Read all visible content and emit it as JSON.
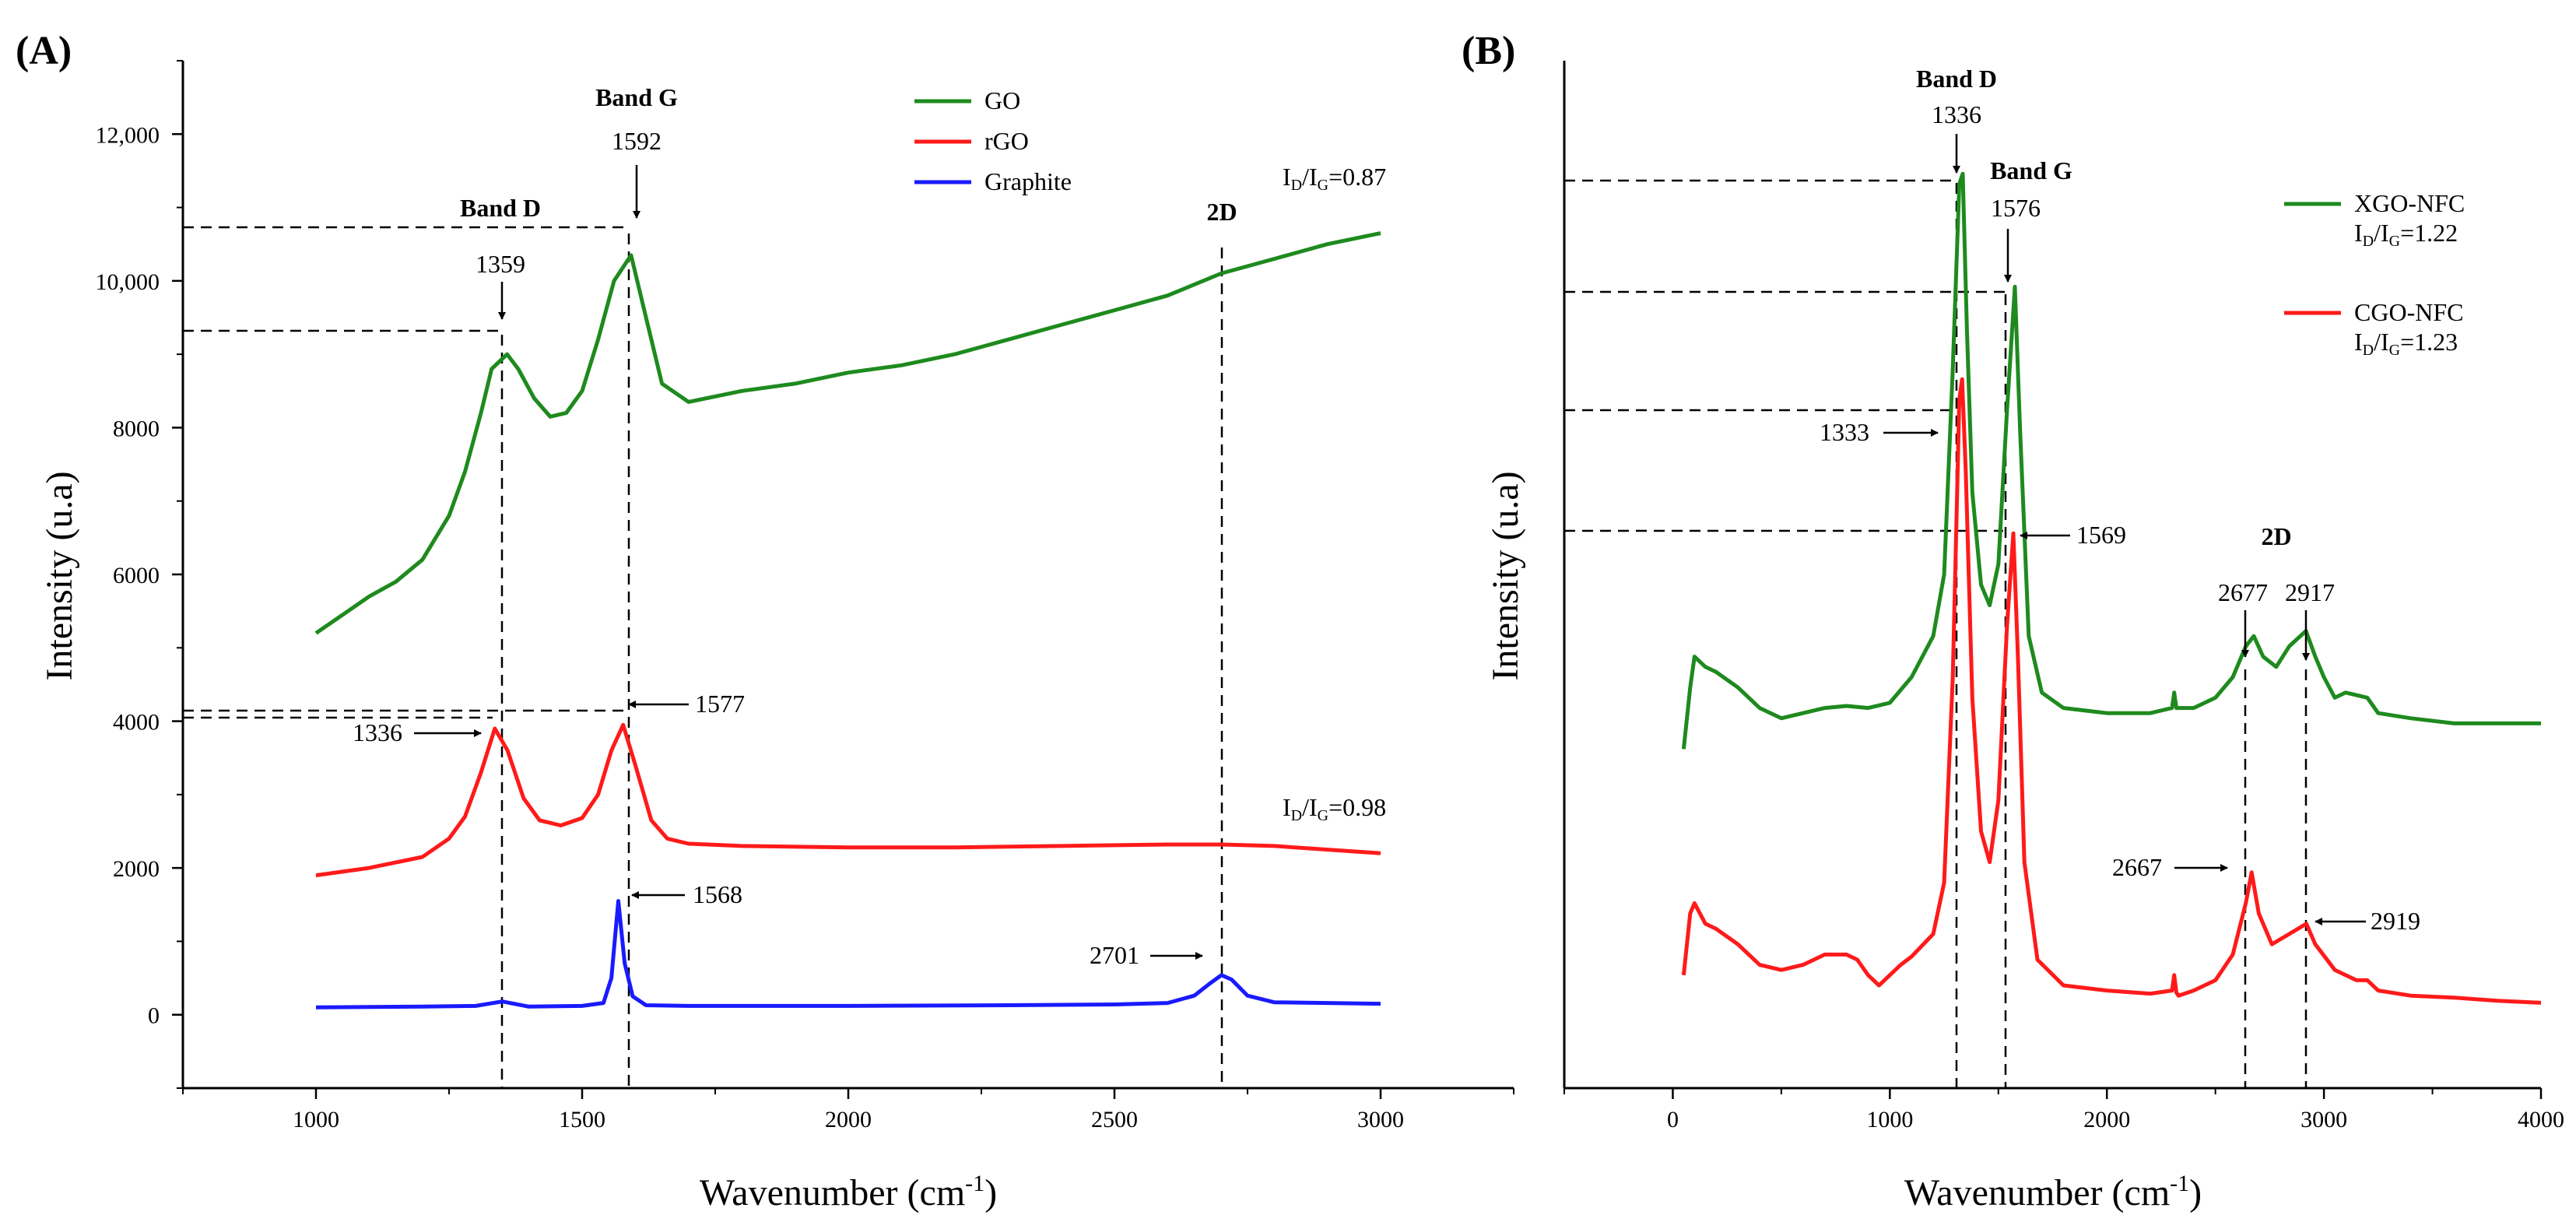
{
  "colors": {
    "GO": "#1e8a1e",
    "rGO": "#ff1a1a",
    "Graphite": "#1a1aff",
    "XGO-NFC": "#1e8a1e",
    "CGO-NFC": "#ff1a1a"
  },
  "chart_data": [
    {
      "panel": "(A)",
      "type": "line",
      "xlabel_main": "Wavenumber (cm",
      "xlabel_sup": "-1",
      "xlabel_tail": ")",
      "ylabel": "Intensity (u.a)",
      "xlim": [
        750,
        3250
      ],
      "ylim": [
        -1000,
        13000
      ],
      "xticks": [
        1000,
        1500,
        2000,
        2500,
        3000
      ],
      "yticks": [
        0,
        2000,
        4000,
        6000,
        8000,
        10000,
        12000
      ],
      "ytick_labels": [
        "0",
        "2000",
        "4000",
        "6000",
        "8000",
        "10,000",
        "12,000"
      ],
      "series": [
        {
          "name": "GO",
          "x": [
            1000,
            1050,
            1100,
            1150,
            1200,
            1250,
            1280,
            1310,
            1330,
            1359,
            1380,
            1410,
            1440,
            1470,
            1500,
            1530,
            1560,
            1592,
            1620,
            1650,
            1700,
            1800,
            1900,
            2000,
            2100,
            2200,
            2300,
            2400,
            2500,
            2600,
            2700,
            2800,
            2900,
            3000
          ],
          "y": [
            5200,
            5450,
            5700,
            5900,
            6200,
            6800,
            7400,
            8200,
            8800,
            9000,
            8800,
            8400,
            8150,
            8200,
            8500,
            9200,
            10000,
            10350,
            9500,
            8600,
            8350,
            8500,
            8600,
            8750,
            8850,
            9000,
            9200,
            9400,
            9600,
            9800,
            10100,
            10300,
            10500,
            10650
          ]
        },
        {
          "name": "rGO",
          "x": [
            1000,
            1100,
            1200,
            1250,
            1280,
            1310,
            1336,
            1360,
            1390,
            1420,
            1460,
            1500,
            1530,
            1555,
            1577,
            1600,
            1630,
            1660,
            1700,
            1800,
            2000,
            2200,
            2400,
            2600,
            2700,
            2800,
            3000
          ],
          "y": [
            1900,
            2000,
            2150,
            2400,
            2700,
            3300,
            3900,
            3600,
            2950,
            2650,
            2580,
            2680,
            3000,
            3600,
            3950,
            3400,
            2650,
            2400,
            2330,
            2300,
            2280,
            2280,
            2300,
            2320,
            2320,
            2300,
            2200
          ]
        },
        {
          "name": "Graphite",
          "x": [
            1000,
            1200,
            1300,
            1350,
            1400,
            1500,
            1540,
            1555,
            1568,
            1580,
            1595,
            1620,
            1700,
            2000,
            2300,
            2500,
            2600,
            2650,
            2680,
            2701,
            2720,
            2750,
            2800,
            3000
          ],
          "y": [
            100,
            110,
            120,
            180,
            110,
            120,
            160,
            500,
            1550,
            700,
            250,
            130,
            120,
            120,
            130,
            140,
            160,
            260,
            430,
            540,
            480,
            260,
            170,
            150
          ]
        }
      ],
      "legend": [
        "GO",
        "rGO",
        "Graphite"
      ],
      "legend_position": "top-right",
      "peak_labels": {
        "GO_D": "1359",
        "GO_G": "1592",
        "rGO_D": "1336",
        "rGO_G": "1577",
        "Gr_G": "1568",
        "Gr_2D": "2701"
      },
      "band_titles": {
        "D": "Band D",
        "G": "Band G",
        "twoD": "2D"
      },
      "ratios": {
        "GO": "=0.87",
        "rGO": "=0.98"
      }
    },
    {
      "panel": "(B)",
      "type": "line",
      "xlabel_main": "Wavenumber (cm",
      "xlabel_sup": "-1",
      "xlabel_tail": ")",
      "ylabel": "Intensity (u.a)",
      "xlim": [
        -500,
        4000
      ],
      "ylim": [
        0,
        100
      ],
      "xticks": [
        0,
        1000,
        2000,
        3000,
        4000
      ],
      "yticks": [],
      "series": [
        {
          "name": "XGO-NFC",
          "x": [
            50,
            80,
            100,
            150,
            200,
            300,
            400,
            500,
            600,
            700,
            800,
            900,
            1000,
            1100,
            1150,
            1200,
            1250,
            1290,
            1320,
            1336,
            1355,
            1380,
            1420,
            1460,
            1500,
            1540,
            1576,
            1600,
            1640,
            1700,
            1800,
            2000,
            2200,
            2300,
            2310,
            2320,
            2400,
            2500,
            2580,
            2640,
            2677,
            2720,
            2780,
            2840,
            2917,
            2960,
            3000,
            3050,
            3100,
            3200,
            3250,
            3400,
            3600,
            3800,
            4000
          ],
          "y": [
            33,
            39,
            42,
            41,
            40.5,
            39,
            37,
            36,
            36.5,
            37,
            37.2,
            37,
            37.5,
            40,
            42,
            44,
            50,
            70,
            88,
            89,
            74,
            58,
            49,
            47,
            51,
            66,
            78,
            64,
            44,
            38.5,
            37,
            36.5,
            36.5,
            37,
            38.5,
            37,
            37,
            38,
            40,
            43,
            44,
            42,
            41,
            43,
            44.5,
            42,
            40,
            38,
            38.5,
            38,
            36.5,
            36,
            35.5,
            35.5,
            35.5
          ]
        },
        {
          "name": "CGO-NFC",
          "x": [
            50,
            80,
            100,
            150,
            200,
            300,
            400,
            500,
            600,
            700,
            800,
            850,
            900,
            950,
            1000,
            1050,
            1100,
            1200,
            1250,
            1290,
            1320,
            1333,
            1350,
            1380,
            1420,
            1460,
            1500,
            1540,
            1569,
            1590,
            1620,
            1680,
            1800,
            2000,
            2200,
            2300,
            2310,
            2320,
            2330,
            2400,
            2500,
            2580,
            2640,
            2667,
            2700,
            2760,
            2840,
            2919,
            2960,
            3050,
            3150,
            3200,
            3250,
            3400,
            3600,
            3800,
            4000
          ],
          "y": [
            11,
            17,
            18,
            16,
            15.5,
            14,
            12,
            11.5,
            12,
            13,
            13,
            12.5,
            11,
            10,
            11,
            12,
            12.8,
            15,
            20,
            40,
            67,
            69,
            60,
            38,
            25,
            22,
            28,
            45,
            54,
            42,
            22,
            12.5,
            10,
            9.5,
            9.2,
            9.5,
            11,
            9.3,
            9,
            9.5,
            10.5,
            13,
            18,
            21,
            17,
            14,
            15,
            16,
            14,
            11.5,
            10.5,
            10.5,
            9.5,
            9,
            8.8,
            8.5,
            8.3
          ]
        }
      ],
      "legend": [
        "XGO-NFC",
        "CGO-NFC"
      ],
      "legend_position": "top-right",
      "legend_ratios": {
        "XGO": "=1.22",
        "CGO": "=1.23"
      },
      "peak_labels": {
        "X_D": "1336",
        "X_G": "1576",
        "C_D": "1333",
        "C_G": "1569",
        "X_2D1": "2677",
        "X_2D2": "2917",
        "C_2D1": "2667",
        "C_2D2": "2919"
      },
      "band_titles": {
        "D": "Band D",
        "G": "Band G",
        "twoD": "2D"
      }
    }
  ]
}
